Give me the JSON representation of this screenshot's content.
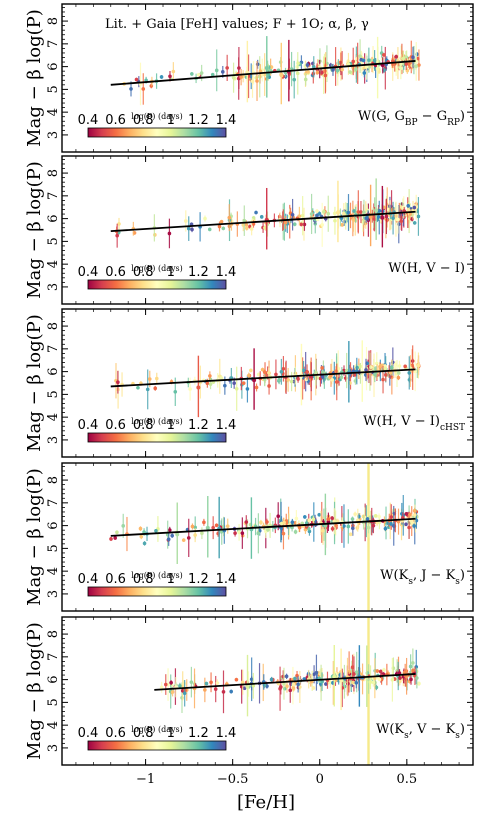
{
  "figure": {
    "xlabel": "[Fe/H]",
    "x_ticks": [
      "−1",
      "−0.5",
      "0",
      "0.5"
    ],
    "xlim": [
      -1.48,
      0.88
    ],
    "top_annotation": "Lit. + Gaia [FeH] values; F + 1O;  α,  β,  γ"
  },
  "colorbar": {
    "title": "log(P) (days)",
    "ticks": [
      "0.4",
      "0.6",
      "0.8",
      "1",
      "1.2",
      "1.4"
    ],
    "range": [
      0.4,
      1.4
    ],
    "colors": [
      "#9e0142",
      "#d53e4f",
      "#f46d43",
      "#fdae61",
      "#fee08b",
      "#ffffbf",
      "#e6f598",
      "#abdda4",
      "#66c2a5",
      "#3288bd",
      "#5e4fa2"
    ]
  },
  "chart_data": [
    {
      "type": "scatter",
      "panel_label": "W(G,  G_BP − G_RP)",
      "ylabel": "Mag − β log(P)",
      "y_ticks": [
        "3",
        "4",
        "5",
        "6",
        "7",
        "8"
      ],
      "ylim": [
        2.25,
        8.75
      ],
      "y_inverted": true,
      "fit_line": {
        "x": [
          -1.2,
          0.55
        ],
        "y": [
          5.2,
          6.25
        ]
      },
      "vertical_band_x": null
    },
    {
      "type": "scatter",
      "panel_label": "W(H,  V − I)",
      "ylabel": "Mag − β log(P)",
      "y_ticks": [
        "3",
        "4",
        "5",
        "6",
        "7",
        "8"
      ],
      "ylim": [
        2.25,
        8.75
      ],
      "y_inverted": true,
      "fit_line": {
        "x": [
          -1.2,
          0.55
        ],
        "y": [
          5.45,
          6.3
        ]
      },
      "vertical_band_x": null
    },
    {
      "type": "scatter",
      "panel_label": "W(H,  V − I)_cHST",
      "ylabel": "Mag − β log(P)",
      "y_ticks": [
        "3",
        "4",
        "5",
        "6",
        "7",
        "8"
      ],
      "ylim": [
        2.25,
        8.75
      ],
      "y_inverted": true,
      "fit_line": {
        "x": [
          -1.2,
          0.55
        ],
        "y": [
          5.35,
          6.1
        ]
      },
      "vertical_band_x": null
    },
    {
      "type": "scatter",
      "panel_label": "W(K_s,  J − K_s)",
      "ylabel": "Mag − β log(P)",
      "y_ticks": [
        "3",
        "4",
        "5",
        "6",
        "7",
        "8"
      ],
      "ylim": [
        2.25,
        8.75
      ],
      "y_inverted": true,
      "fit_line": {
        "x": [
          -1.2,
          0.55
        ],
        "y": [
          5.55,
          6.3
        ]
      },
      "vertical_band_x": 0.28
    },
    {
      "type": "scatter",
      "panel_label": "W(K_s,  V − K_s)",
      "ylabel": "Mag − β log(P)",
      "y_ticks": [
        "3",
        "4",
        "5",
        "6",
        "7",
        "8"
      ],
      "ylim": [
        2.25,
        8.75
      ],
      "y_inverted": true,
      "fit_line": {
        "x": [
          -0.95,
          0.55
        ],
        "y": [
          5.55,
          6.25
        ]
      },
      "vertical_band_x": 0.28
    }
  ]
}
